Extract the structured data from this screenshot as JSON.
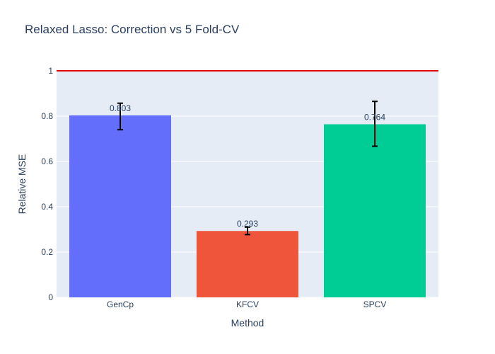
{
  "chart_data": {
    "type": "bar",
    "title": "Relaxed Lasso: Correction vs 5 Fold-CV",
    "xlabel": "Method",
    "ylabel": "Relative MSE",
    "categories": [
      "GenCp",
      "KFCV",
      "SPCV"
    ],
    "values": [
      0.803,
      0.293,
      0.764
    ],
    "data_labels": [
      "0.803",
      "0.293",
      "0.764"
    ],
    "error_bars": [
      {
        "low": 0.74,
        "high": 0.857
      },
      {
        "low": 0.277,
        "high": 0.31
      },
      {
        "low": 0.667,
        "high": 0.865
      }
    ],
    "bar_colors": [
      "#636efa",
      "#ef553b",
      "#00cc96"
    ],
    "ylim": [
      0,
      1
    ],
    "yticks": [
      0,
      0.2,
      0.4,
      0.6,
      0.8,
      1
    ],
    "ytick_labels": [
      "0",
      "0.2",
      "0.4",
      "0.6",
      "0.8",
      "1"
    ],
    "reference_line": {
      "y": 1,
      "color": "#e00000"
    },
    "grid": true,
    "plot_background": "#e5ecf6",
    "text_color": "#2a3f5f"
  }
}
